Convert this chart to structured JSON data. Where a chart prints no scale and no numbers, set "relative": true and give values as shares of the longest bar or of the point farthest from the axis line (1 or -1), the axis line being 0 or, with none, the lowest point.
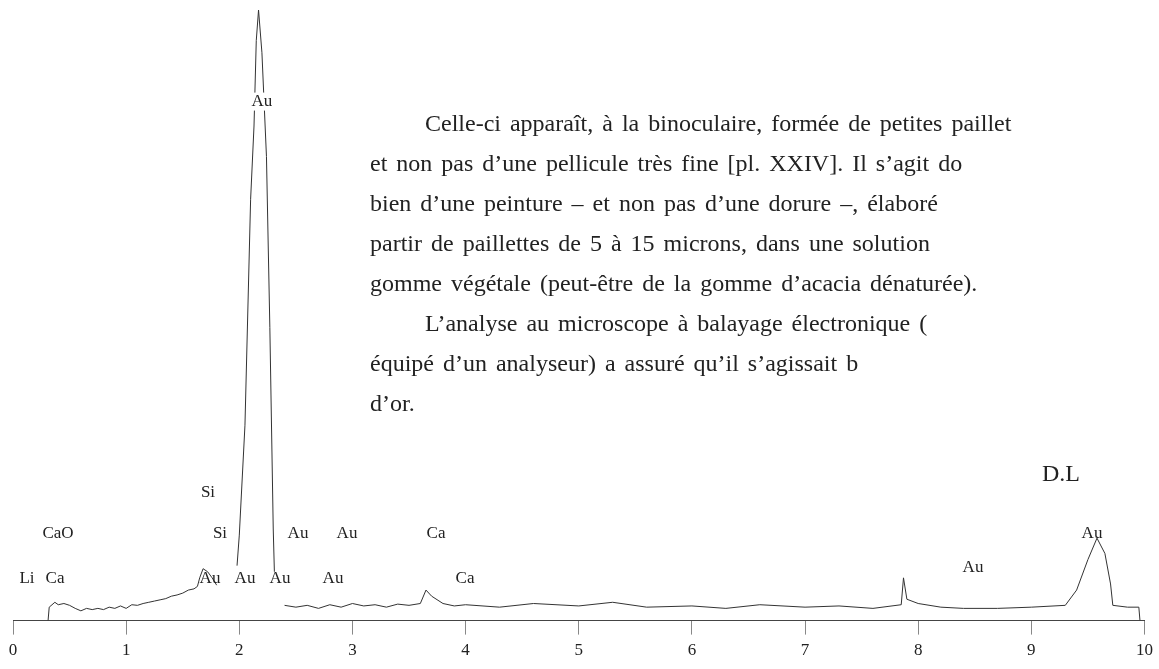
{
  "chart_data": {
    "type": "line",
    "relative": true,
    "color": "#333333",
    "grid": false,
    "legend": false,
    "marker": "none",
    "line_style": "solid",
    "xlim": [
      0,
      10
    ],
    "xticks": [
      0,
      1,
      2,
      3,
      4,
      5,
      6,
      7,
      8,
      9,
      10
    ],
    "x": [
      0.31,
      0.32,
      0.37,
      0.4,
      0.45,
      0.5,
      0.55,
      0.6,
      0.65,
      0.7,
      0.75,
      0.8,
      0.85,
      0.9,
      0.95,
      1.0,
      1.05,
      1.1,
      1.15,
      1.2,
      1.25,
      1.3,
      1.35,
      1.4,
      1.45,
      1.5,
      1.55,
      1.6,
      1.63,
      1.65,
      1.68,
      1.72,
      1.76,
      1.8,
      1.9,
      1.98,
      2.0,
      2.05,
      2.1,
      2.13,
      2.15,
      2.17,
      2.2,
      2.24,
      2.27,
      2.3,
      2.31,
      2.35,
      2.4,
      2.5,
      2.6,
      2.7,
      2.8,
      2.9,
      3.0,
      3.1,
      3.2,
      3.3,
      3.4,
      3.5,
      3.6,
      3.65,
      3.7,
      3.8,
      3.9,
      4.0,
      4.3,
      4.6,
      5.0,
      5.3,
      5.6,
      6.0,
      6.3,
      6.6,
      7.0,
      7.3,
      7.6,
      7.85,
      7.87,
      7.9,
      8.0,
      8.2,
      8.4,
      8.7,
      9.0,
      9.3,
      9.4,
      9.5,
      9.58,
      9.65,
      9.7,
      9.72,
      9.85,
      9.95,
      9.96
    ],
    "series": [
      {
        "values": [
          0,
          0.022,
          0.03,
          0.026,
          0.028,
          0.025,
          0.02,
          0.016,
          0.02,
          0.018,
          0.02,
          0.018,
          0.022,
          0.02,
          0.024,
          0.02,
          0.026,
          0.025,
          0.028,
          0.03,
          0.032,
          0.034,
          0.036,
          0.04,
          0.042,
          0.045,
          0.05,
          0.052,
          0.056,
          0.07,
          0.085,
          0.08,
          0.07,
          0.058,
          null,
          0.09,
          0.14,
          0.32,
          0.69,
          0.81,
          0.95,
          1.0,
          0.93,
          0.76,
          0.48,
          0.15,
          0.08,
          null,
          0.025,
          0.022,
          0.025,
          0.02,
          0.026,
          0.022,
          0.028,
          0.024,
          0.026,
          0.022,
          0.027,
          0.025,
          0.028,
          0.05,
          0.04,
          0.028,
          0.024,
          0.026,
          0.022,
          0.028,
          0.024,
          0.03,
          0.022,
          0.024,
          0.02,
          0.026,
          0.022,
          0.024,
          0.02,
          0.026,
          0.07,
          0.035,
          0.028,
          0.022,
          0.02,
          0.02,
          0.022,
          0.025,
          0.05,
          0.1,
          0.135,
          0.11,
          0.06,
          0.025,
          0.022,
          0.022,
          0
        ]
      }
    ],
    "annotations": [
      {
        "text": "Au",
        "x": 2.2,
        "y": 0.85
      },
      "Si",
      "CaO",
      "Si",
      "Au",
      "Au",
      "Ca",
      "Li",
      "Ca",
      "Au",
      "Au",
      "Au",
      "Au",
      "Ca",
      "Au",
      "Au",
      "Celle-ci apparaît, à la binoculaire, formée de petites paillet",
      "et non pas d’une pellicule très fine [pl. XXIV]. Il s’agit do",
      "bien d’une peinture – et non pas d’une dorure –, élaboré",
      "partir de paillettes de 5 à 15 microns, dans une solution",
      "gomme végétale (peut-être de la gomme d’acacia dénaturée).",
      "L’analyse au microscope à balayage électronique (",
      "équipé d’un analyseur) a assuré qu’il s’agissait b",
      "d’or.",
      "D.L"
    ]
  }
}
